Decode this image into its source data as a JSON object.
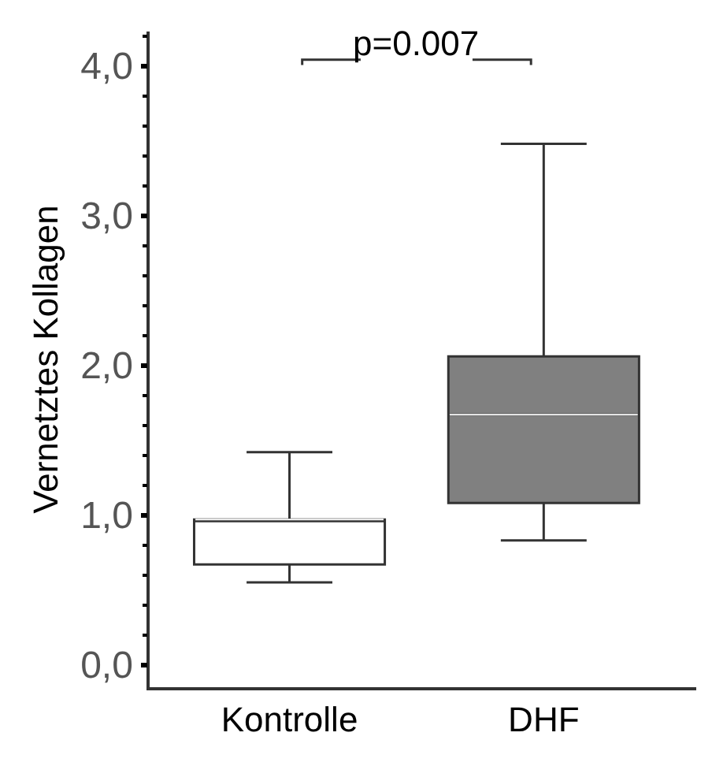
{
  "chart_data": {
    "type": "box",
    "ylabel": "Vernetztes Kollagen",
    "categories": [
      "Kontrolle",
      "DHF"
    ],
    "boxes": [
      {
        "low": 0.55,
        "q1": 0.67,
        "median": 0.97,
        "q3": 0.97,
        "high": 1.42
      },
      {
        "low": 0.83,
        "q1": 1.08,
        "median": 1.67,
        "q3": 2.06,
        "high": 3.48
      }
    ],
    "colors": [
      "#ffffff",
      "#808080"
    ],
    "ylim": [
      -0.15,
      4.23
    ],
    "yticks": [
      {
        "value": 0,
        "label": "0,0"
      },
      {
        "value": 1,
        "label": "1,0"
      },
      {
        "value": 2,
        "label": "2,0"
      },
      {
        "value": 3,
        "label": "3,0"
      },
      {
        "value": 4,
        "label": "4,0"
      }
    ],
    "annotations": [
      "p=0.007"
    ],
    "legend": false
  }
}
